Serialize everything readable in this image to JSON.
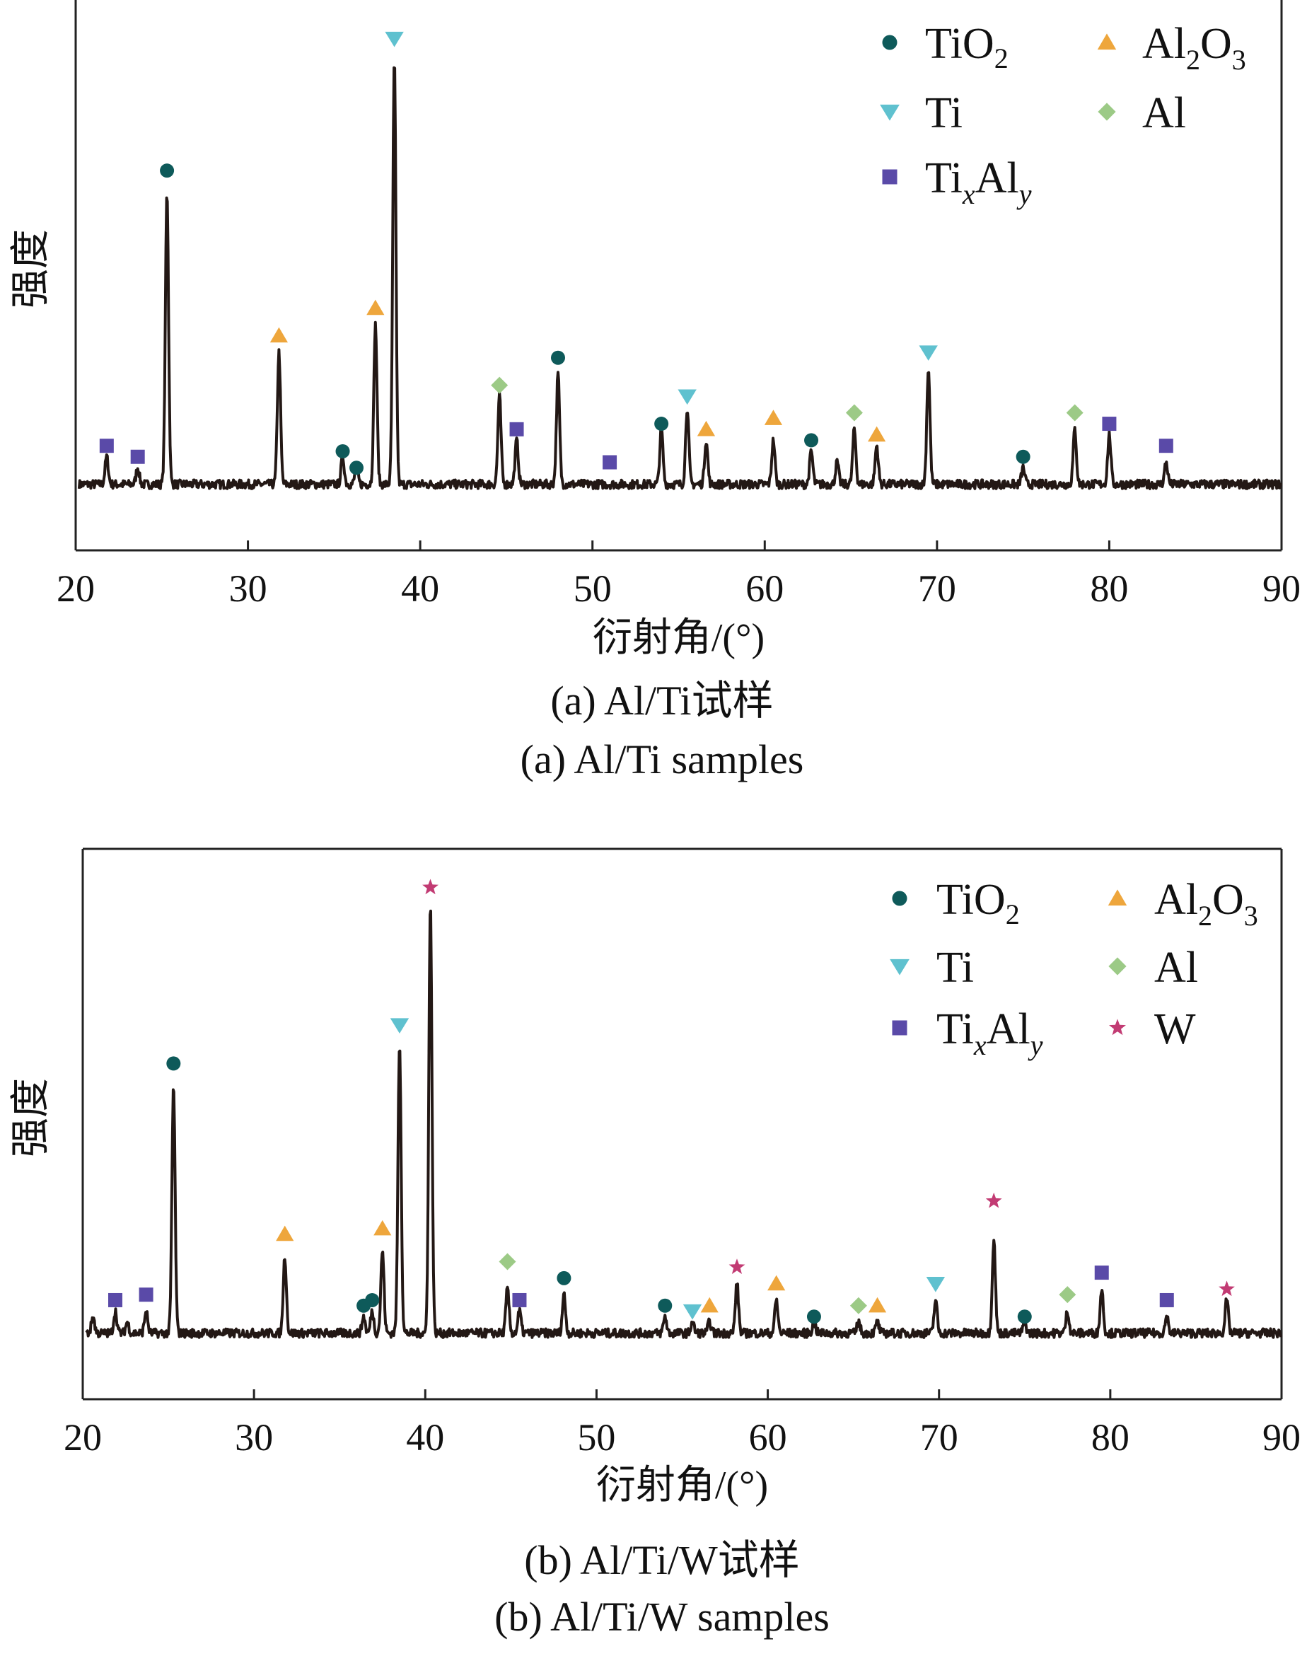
{
  "colors": {
    "TiO2": "#0e5a5a",
    "Al2O3": "#eea63c",
    "Ti": "#5fc1cf",
    "Al": "#9cca86",
    "TixAly": "#5a4aa8",
    "W": "#c23b73",
    "pattern": "#231815",
    "axis": "#222222"
  },
  "legend_names": {
    "TiO2": {
      "base": "TiO",
      "sub": "2"
    },
    "Al2O3": {
      "p1": "Al",
      "s1": "2",
      "p2": "O",
      "s2": "3"
    },
    "Ti": "Ti",
    "Al": "Al",
    "TixAly": {
      "p1": "Ti",
      "s1": "x",
      "p2": "Al",
      "s2": "y"
    },
    "W": "W"
  },
  "chart_data": [
    {
      "type": "line",
      "panel": "a",
      "xlabel": "衍射角/(°)",
      "ylabel": "强度",
      "xlim": [
        20,
        90
      ],
      "ylim": [
        0,
        100
      ],
      "xticks": [
        20,
        30,
        40,
        50,
        60,
        70,
        80,
        90
      ],
      "caption_cn": "(a) Al/Ti试样",
      "caption_en": "(a) Al/Ti samples",
      "legend_placement": "top-right",
      "legend_keys": [
        "TiO2",
        "Al2O3",
        "Ti",
        "Al",
        "TixAly"
      ],
      "baseline": 12,
      "peaks": [
        {
          "x": 21.8,
          "h": 5
        },
        {
          "x": 23.6,
          "h": 3
        },
        {
          "x": 25.3,
          "h": 53
        },
        {
          "x": 31.8,
          "h": 24
        },
        {
          "x": 35.5,
          "h": 5
        },
        {
          "x": 36.3,
          "h": 3
        },
        {
          "x": 37.4,
          "h": 29
        },
        {
          "x": 38.5,
          "h": 77
        },
        {
          "x": 44.6,
          "h": 16
        },
        {
          "x": 45.6,
          "h": 8
        },
        {
          "x": 48.0,
          "h": 20
        },
        {
          "x": 54.0,
          "h": 10
        },
        {
          "x": 55.5,
          "h": 14
        },
        {
          "x": 56.6,
          "h": 8
        },
        {
          "x": 60.5,
          "h": 8
        },
        {
          "x": 62.7,
          "h": 6
        },
        {
          "x": 64.2,
          "h": 4
        },
        {
          "x": 65.2,
          "h": 10
        },
        {
          "x": 66.5,
          "h": 7
        },
        {
          "x": 69.5,
          "h": 21
        },
        {
          "x": 75.0,
          "h": 3
        },
        {
          "x": 78.0,
          "h": 10
        },
        {
          "x": 80.0,
          "h": 9
        },
        {
          "x": 83.3,
          "h": 4
        }
      ],
      "markers": [
        {
          "phase": "TixAly",
          "x": 21.8,
          "y": 19
        },
        {
          "phase": "TixAly",
          "x": 23.6,
          "y": 17
        },
        {
          "phase": "TiO2",
          "x": 25.3,
          "y": 69
        },
        {
          "phase": "Al2O3",
          "x": 31.8,
          "y": 39
        },
        {
          "phase": "TiO2",
          "x": 35.5,
          "y": 18
        },
        {
          "phase": "TiO2",
          "x": 36.3,
          "y": 15
        },
        {
          "phase": "Al2O3",
          "x": 37.4,
          "y": 44
        },
        {
          "phase": "Ti",
          "x": 38.5,
          "y": 93
        },
        {
          "phase": "Al",
          "x": 44.6,
          "y": 30
        },
        {
          "phase": "TixAly",
          "x": 45.6,
          "y": 22
        },
        {
          "phase": "TiO2",
          "x": 48.0,
          "y": 35
        },
        {
          "phase": "TixAly",
          "x": 51.0,
          "y": 16
        },
        {
          "phase": "TiO2",
          "x": 54.0,
          "y": 23
        },
        {
          "phase": "Ti",
          "x": 55.5,
          "y": 28
        },
        {
          "phase": "Al2O3",
          "x": 56.6,
          "y": 22
        },
        {
          "phase": "Al2O3",
          "x": 60.5,
          "y": 24
        },
        {
          "phase": "TiO2",
          "x": 62.7,
          "y": 20
        },
        {
          "phase": "Al",
          "x": 65.2,
          "y": 25
        },
        {
          "phase": "Al2O3",
          "x": 66.5,
          "y": 21
        },
        {
          "phase": "Ti",
          "x": 69.5,
          "y": 36
        },
        {
          "phase": "TiO2",
          "x": 75.0,
          "y": 17
        },
        {
          "phase": "Al",
          "x": 78.0,
          "y": 25
        },
        {
          "phase": "TixAly",
          "x": 80.0,
          "y": 23
        },
        {
          "phase": "TixAly",
          "x": 83.3,
          "y": 19
        }
      ]
    },
    {
      "type": "line",
      "panel": "b",
      "xlabel": "衍射角/(°)",
      "ylabel": "强度",
      "xlim": [
        20,
        90
      ],
      "ylim": [
        0,
        100
      ],
      "xticks": [
        20,
        30,
        40,
        50,
        60,
        70,
        80,
        90
      ],
      "caption_cn": "(b) Al/Ti/W试样",
      "caption_en": "(b) Al/Ti/W samples",
      "legend_placement": "top-right",
      "legend_keys": [
        "TiO2",
        "Al2O3",
        "Ti",
        "Al",
        "TixAly",
        "W"
      ],
      "baseline": 12,
      "peaks": [
        {
          "x": 20.6,
          "h": 3
        },
        {
          "x": 21.9,
          "h": 4
        },
        {
          "x": 22.6,
          "h": 2
        },
        {
          "x": 23.7,
          "h": 4
        },
        {
          "x": 25.3,
          "h": 45
        },
        {
          "x": 31.8,
          "h": 14
        },
        {
          "x": 36.4,
          "h": 3
        },
        {
          "x": 36.9,
          "h": 4
        },
        {
          "x": 37.5,
          "h": 15
        },
        {
          "x": 38.5,
          "h": 53
        },
        {
          "x": 40.3,
          "h": 78
        },
        {
          "x": 44.8,
          "h": 8
        },
        {
          "x": 45.5,
          "h": 4
        },
        {
          "x": 48.1,
          "h": 7
        },
        {
          "x": 54.0,
          "h": 3
        },
        {
          "x": 55.6,
          "h": 2
        },
        {
          "x": 56.6,
          "h": 2
        },
        {
          "x": 58.2,
          "h": 9
        },
        {
          "x": 60.5,
          "h": 6
        },
        {
          "x": 62.7,
          "h": 2
        },
        {
          "x": 65.3,
          "h": 2
        },
        {
          "x": 66.4,
          "h": 2
        },
        {
          "x": 69.8,
          "h": 6
        },
        {
          "x": 73.2,
          "h": 17
        },
        {
          "x": 75.0,
          "h": 2
        },
        {
          "x": 77.5,
          "h": 4
        },
        {
          "x": 79.5,
          "h": 8
        },
        {
          "x": 83.3,
          "h": 3
        },
        {
          "x": 86.8,
          "h": 6
        }
      ],
      "markers": [
        {
          "phase": "TixAly",
          "x": 21.9,
          "y": 18
        },
        {
          "phase": "TixAly",
          "x": 23.7,
          "y": 19
        },
        {
          "phase": "TiO2",
          "x": 25.3,
          "y": 61
        },
        {
          "phase": "Al2O3",
          "x": 31.8,
          "y": 30
        },
        {
          "phase": "TiO2",
          "x": 36.4,
          "y": 17
        },
        {
          "phase": "TiO2",
          "x": 36.9,
          "y": 18
        },
        {
          "phase": "Al2O3",
          "x": 37.5,
          "y": 31
        },
        {
          "phase": "Ti",
          "x": 38.5,
          "y": 68
        },
        {
          "phase": "W",
          "x": 40.3,
          "y": 93
        },
        {
          "phase": "Al",
          "x": 44.8,
          "y": 25
        },
        {
          "phase": "TixAly",
          "x": 45.5,
          "y": 18
        },
        {
          "phase": "TiO2",
          "x": 48.1,
          "y": 22
        },
        {
          "phase": "TiO2",
          "x": 54.0,
          "y": 17
        },
        {
          "phase": "Ti",
          "x": 55.6,
          "y": 16
        },
        {
          "phase": "Al2O3",
          "x": 56.6,
          "y": 17
        },
        {
          "phase": "W",
          "x": 58.2,
          "y": 24
        },
        {
          "phase": "Al2O3",
          "x": 60.5,
          "y": 21
        },
        {
          "phase": "TiO2",
          "x": 62.7,
          "y": 15
        },
        {
          "phase": "Al",
          "x": 65.3,
          "y": 17
        },
        {
          "phase": "Al2O3",
          "x": 66.4,
          "y": 17
        },
        {
          "phase": "Ti",
          "x": 69.8,
          "y": 21
        },
        {
          "phase": "W",
          "x": 73.2,
          "y": 36
        },
        {
          "phase": "TiO2",
          "x": 75.0,
          "y": 15
        },
        {
          "phase": "Al",
          "x": 77.5,
          "y": 19
        },
        {
          "phase": "TixAly",
          "x": 79.5,
          "y": 23
        },
        {
          "phase": "TixAly",
          "x": 83.3,
          "y": 18
        },
        {
          "phase": "W",
          "x": 86.8,
          "y": 20
        }
      ]
    }
  ]
}
